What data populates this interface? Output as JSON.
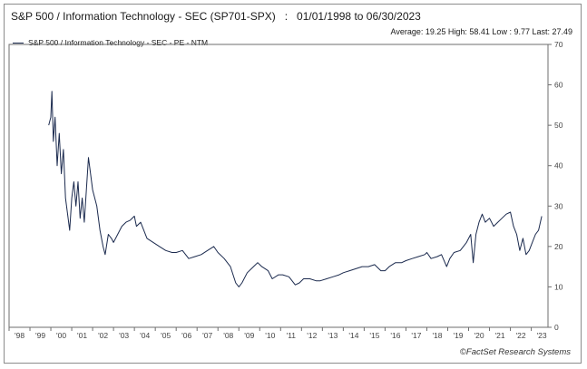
{
  "chart_data": {
    "type": "line",
    "title": "S&P 500 / Information Technology - SEC (SP701-SPX)   :   01/01/1998 to 06/30/2023",
    "stats": "Average: 19.25 High: 58.41 Low : 9.77 Last: 27.49",
    "legend_position": "top-left",
    "grid": false,
    "x_tick_labels": [
      "'98",
      "'99",
      "'00",
      "'01",
      "'02",
      "'03",
      "'04",
      "'05",
      "'06",
      "'07",
      "'08",
      "'09",
      "'10",
      "'11",
      "'12",
      "'13",
      "'14",
      "'15",
      "'16",
      "'17",
      "'18",
      "'19",
      "'20",
      "'21",
      "'22",
      "'23"
    ],
    "y_ticks": [
      0,
      10,
      20,
      30,
      40,
      50,
      60,
      70
    ],
    "ylim": [
      0,
      70
    ],
    "xlim": [
      1998.0,
      2023.8
    ],
    "series": [
      {
        "name": "S&P 500 / Information Technology - SEC - PE - NTM",
        "color": "#1b2a4e",
        "points": [
          [
            1999.9,
            50
          ],
          [
            2000.0,
            52
          ],
          [
            2000.05,
            58.4
          ],
          [
            2000.12,
            46
          ],
          [
            2000.2,
            52
          ],
          [
            2000.3,
            40
          ],
          [
            2000.4,
            48
          ],
          [
            2000.5,
            38
          ],
          [
            2000.6,
            44
          ],
          [
            2000.7,
            32
          ],
          [
            2000.8,
            28
          ],
          [
            2000.9,
            24
          ],
          [
            2001.0,
            32
          ],
          [
            2001.1,
            36
          ],
          [
            2001.2,
            30
          ],
          [
            2001.3,
            36
          ],
          [
            2001.4,
            27
          ],
          [
            2001.5,
            32
          ],
          [
            2001.6,
            26
          ],
          [
            2001.7,
            34
          ],
          [
            2001.8,
            42
          ],
          [
            2001.9,
            38
          ],
          [
            2002.0,
            34
          ],
          [
            2002.2,
            30
          ],
          [
            2002.35,
            24
          ],
          [
            2002.5,
            20
          ],
          [
            2002.6,
            18
          ],
          [
            2002.75,
            23
          ],
          [
            2002.9,
            22
          ],
          [
            2003.0,
            21
          ],
          [
            2003.2,
            23
          ],
          [
            2003.4,
            25
          ],
          [
            2003.6,
            26
          ],
          [
            2003.8,
            26.5
          ],
          [
            2004.0,
            27.5
          ],
          [
            2004.1,
            25
          ],
          [
            2004.3,
            26
          ],
          [
            2004.6,
            22
          ],
          [
            2004.9,
            21
          ],
          [
            2005.2,
            20
          ],
          [
            2005.5,
            19
          ],
          [
            2005.8,
            18.5
          ],
          [
            2006.0,
            18.5
          ],
          [
            2006.3,
            19
          ],
          [
            2006.6,
            17
          ],
          [
            2006.9,
            17.5
          ],
          [
            2007.2,
            18
          ],
          [
            2007.5,
            19
          ],
          [
            2007.8,
            20
          ],
          [
            2008.0,
            18.5
          ],
          [
            2008.3,
            17
          ],
          [
            2008.6,
            15
          ],
          [
            2008.85,
            11
          ],
          [
            2009.0,
            10
          ],
          [
            2009.15,
            11
          ],
          [
            2009.4,
            13.5
          ],
          [
            2009.7,
            15
          ],
          [
            2009.9,
            16
          ],
          [
            2010.1,
            15
          ],
          [
            2010.4,
            14
          ],
          [
            2010.6,
            12
          ],
          [
            2010.9,
            13
          ],
          [
            2011.1,
            13
          ],
          [
            2011.4,
            12.5
          ],
          [
            2011.7,
            10.5
          ],
          [
            2011.9,
            11
          ],
          [
            2012.1,
            12
          ],
          [
            2012.4,
            12
          ],
          [
            2012.7,
            11.5
          ],
          [
            2012.9,
            11.5
          ],
          [
            2013.2,
            12
          ],
          [
            2013.5,
            12.5
          ],
          [
            2013.8,
            13
          ],
          [
            2014.0,
            13.5
          ],
          [
            2014.3,
            14
          ],
          [
            2014.6,
            14.5
          ],
          [
            2014.9,
            15
          ],
          [
            2015.2,
            15
          ],
          [
            2015.5,
            15.5
          ],
          [
            2015.8,
            14
          ],
          [
            2016.0,
            14
          ],
          [
            2016.2,
            15
          ],
          [
            2016.5,
            16
          ],
          [
            2016.8,
            16
          ],
          [
            2017.0,
            16.5
          ],
          [
            2017.3,
            17
          ],
          [
            2017.6,
            17.5
          ],
          [
            2017.9,
            18
          ],
          [
            2018.0,
            18.5
          ],
          [
            2018.2,
            17
          ],
          [
            2018.5,
            17.5
          ],
          [
            2018.7,
            18
          ],
          [
            2018.95,
            15
          ],
          [
            2019.1,
            17
          ],
          [
            2019.3,
            18.5
          ],
          [
            2019.6,
            19
          ],
          [
            2019.9,
            21
          ],
          [
            2020.1,
            23
          ],
          [
            2020.22,
            16
          ],
          [
            2020.35,
            23
          ],
          [
            2020.5,
            26
          ],
          [
            2020.65,
            28
          ],
          [
            2020.8,
            26
          ],
          [
            2021.0,
            27
          ],
          [
            2021.2,
            25
          ],
          [
            2021.4,
            26
          ],
          [
            2021.6,
            27
          ],
          [
            2021.8,
            28
          ],
          [
            2022.0,
            28.5
          ],
          [
            2022.15,
            25
          ],
          [
            2022.3,
            23
          ],
          [
            2022.45,
            19
          ],
          [
            2022.6,
            22
          ],
          [
            2022.75,
            18
          ],
          [
            2022.9,
            19
          ],
          [
            2023.05,
            21
          ],
          [
            2023.2,
            23
          ],
          [
            2023.35,
            24
          ],
          [
            2023.5,
            27.49
          ]
        ]
      }
    ]
  },
  "footer": {
    "credit": "©FactSet Research Systems"
  }
}
